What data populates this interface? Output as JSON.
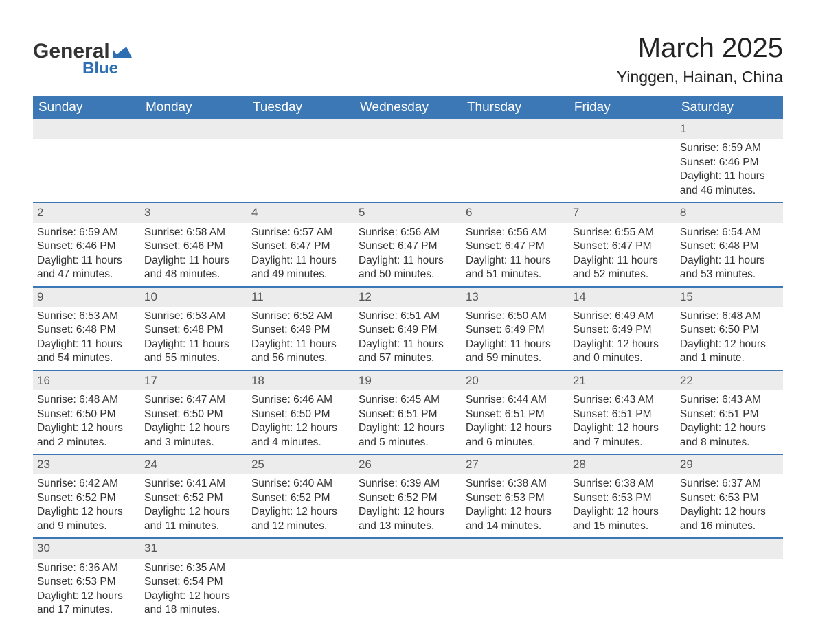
{
  "logo": {
    "text1": "General",
    "text2": "Blue",
    "icon_color": "#2e6fb3",
    "text1_color": "#333333",
    "text2_color": "#2e6fb3"
  },
  "title": {
    "month": "March 2025",
    "location": "Yinggen, Hainan, China"
  },
  "colors": {
    "header_bg": "#3b78b5",
    "header_text": "#ffffff",
    "daynum_bg": "#ececec",
    "row_border": "#3b78b5",
    "body_text": "#333333",
    "daynum_text": "#555555",
    "background": "#ffffff"
  },
  "typography": {
    "title_month_fontsize": 40,
    "title_location_fontsize": 23,
    "weekday_fontsize": 19,
    "daynum_fontsize": 17,
    "cell_fontsize": 15.5,
    "logo_general_fontsize": 30,
    "logo_blue_fontsize": 24
  },
  "weekdays": [
    "Sunday",
    "Monday",
    "Tuesday",
    "Wednesday",
    "Thursday",
    "Friday",
    "Saturday"
  ],
  "weeks": [
    [
      {
        "empty": true
      },
      {
        "empty": true
      },
      {
        "empty": true
      },
      {
        "empty": true
      },
      {
        "empty": true
      },
      {
        "empty": true
      },
      {
        "day": "1",
        "sunrise": "Sunrise: 6:59 AM",
        "sunset": "Sunset: 6:46 PM",
        "daylight1": "Daylight: 11 hours",
        "daylight2": "and 46 minutes."
      }
    ],
    [
      {
        "day": "2",
        "sunrise": "Sunrise: 6:59 AM",
        "sunset": "Sunset: 6:46 PM",
        "daylight1": "Daylight: 11 hours",
        "daylight2": "and 47 minutes."
      },
      {
        "day": "3",
        "sunrise": "Sunrise: 6:58 AM",
        "sunset": "Sunset: 6:46 PM",
        "daylight1": "Daylight: 11 hours",
        "daylight2": "and 48 minutes."
      },
      {
        "day": "4",
        "sunrise": "Sunrise: 6:57 AM",
        "sunset": "Sunset: 6:47 PM",
        "daylight1": "Daylight: 11 hours",
        "daylight2": "and 49 minutes."
      },
      {
        "day": "5",
        "sunrise": "Sunrise: 6:56 AM",
        "sunset": "Sunset: 6:47 PM",
        "daylight1": "Daylight: 11 hours",
        "daylight2": "and 50 minutes."
      },
      {
        "day": "6",
        "sunrise": "Sunrise: 6:56 AM",
        "sunset": "Sunset: 6:47 PM",
        "daylight1": "Daylight: 11 hours",
        "daylight2": "and 51 minutes."
      },
      {
        "day": "7",
        "sunrise": "Sunrise: 6:55 AM",
        "sunset": "Sunset: 6:47 PM",
        "daylight1": "Daylight: 11 hours",
        "daylight2": "and 52 minutes."
      },
      {
        "day": "8",
        "sunrise": "Sunrise: 6:54 AM",
        "sunset": "Sunset: 6:48 PM",
        "daylight1": "Daylight: 11 hours",
        "daylight2": "and 53 minutes."
      }
    ],
    [
      {
        "day": "9",
        "sunrise": "Sunrise: 6:53 AM",
        "sunset": "Sunset: 6:48 PM",
        "daylight1": "Daylight: 11 hours",
        "daylight2": "and 54 minutes."
      },
      {
        "day": "10",
        "sunrise": "Sunrise: 6:53 AM",
        "sunset": "Sunset: 6:48 PM",
        "daylight1": "Daylight: 11 hours",
        "daylight2": "and 55 minutes."
      },
      {
        "day": "11",
        "sunrise": "Sunrise: 6:52 AM",
        "sunset": "Sunset: 6:49 PM",
        "daylight1": "Daylight: 11 hours",
        "daylight2": "and 56 minutes."
      },
      {
        "day": "12",
        "sunrise": "Sunrise: 6:51 AM",
        "sunset": "Sunset: 6:49 PM",
        "daylight1": "Daylight: 11 hours",
        "daylight2": "and 57 minutes."
      },
      {
        "day": "13",
        "sunrise": "Sunrise: 6:50 AM",
        "sunset": "Sunset: 6:49 PM",
        "daylight1": "Daylight: 11 hours",
        "daylight2": "and 59 minutes."
      },
      {
        "day": "14",
        "sunrise": "Sunrise: 6:49 AM",
        "sunset": "Sunset: 6:49 PM",
        "daylight1": "Daylight: 12 hours",
        "daylight2": "and 0 minutes."
      },
      {
        "day": "15",
        "sunrise": "Sunrise: 6:48 AM",
        "sunset": "Sunset: 6:50 PM",
        "daylight1": "Daylight: 12 hours",
        "daylight2": "and 1 minute."
      }
    ],
    [
      {
        "day": "16",
        "sunrise": "Sunrise: 6:48 AM",
        "sunset": "Sunset: 6:50 PM",
        "daylight1": "Daylight: 12 hours",
        "daylight2": "and 2 minutes."
      },
      {
        "day": "17",
        "sunrise": "Sunrise: 6:47 AM",
        "sunset": "Sunset: 6:50 PM",
        "daylight1": "Daylight: 12 hours",
        "daylight2": "and 3 minutes."
      },
      {
        "day": "18",
        "sunrise": "Sunrise: 6:46 AM",
        "sunset": "Sunset: 6:50 PM",
        "daylight1": "Daylight: 12 hours",
        "daylight2": "and 4 minutes."
      },
      {
        "day": "19",
        "sunrise": "Sunrise: 6:45 AM",
        "sunset": "Sunset: 6:51 PM",
        "daylight1": "Daylight: 12 hours",
        "daylight2": "and 5 minutes."
      },
      {
        "day": "20",
        "sunrise": "Sunrise: 6:44 AM",
        "sunset": "Sunset: 6:51 PM",
        "daylight1": "Daylight: 12 hours",
        "daylight2": "and 6 minutes."
      },
      {
        "day": "21",
        "sunrise": "Sunrise: 6:43 AM",
        "sunset": "Sunset: 6:51 PM",
        "daylight1": "Daylight: 12 hours",
        "daylight2": "and 7 minutes."
      },
      {
        "day": "22",
        "sunrise": "Sunrise: 6:43 AM",
        "sunset": "Sunset: 6:51 PM",
        "daylight1": "Daylight: 12 hours",
        "daylight2": "and 8 minutes."
      }
    ],
    [
      {
        "day": "23",
        "sunrise": "Sunrise: 6:42 AM",
        "sunset": "Sunset: 6:52 PM",
        "daylight1": "Daylight: 12 hours",
        "daylight2": "and 9 minutes."
      },
      {
        "day": "24",
        "sunrise": "Sunrise: 6:41 AM",
        "sunset": "Sunset: 6:52 PM",
        "daylight1": "Daylight: 12 hours",
        "daylight2": "and 11 minutes."
      },
      {
        "day": "25",
        "sunrise": "Sunrise: 6:40 AM",
        "sunset": "Sunset: 6:52 PM",
        "daylight1": "Daylight: 12 hours",
        "daylight2": "and 12 minutes."
      },
      {
        "day": "26",
        "sunrise": "Sunrise: 6:39 AM",
        "sunset": "Sunset: 6:52 PM",
        "daylight1": "Daylight: 12 hours",
        "daylight2": "and 13 minutes."
      },
      {
        "day": "27",
        "sunrise": "Sunrise: 6:38 AM",
        "sunset": "Sunset: 6:53 PM",
        "daylight1": "Daylight: 12 hours",
        "daylight2": "and 14 minutes."
      },
      {
        "day": "28",
        "sunrise": "Sunrise: 6:38 AM",
        "sunset": "Sunset: 6:53 PM",
        "daylight1": "Daylight: 12 hours",
        "daylight2": "and 15 minutes."
      },
      {
        "day": "29",
        "sunrise": "Sunrise: 6:37 AM",
        "sunset": "Sunset: 6:53 PM",
        "daylight1": "Daylight: 12 hours",
        "daylight2": "and 16 minutes."
      }
    ],
    [
      {
        "day": "30",
        "sunrise": "Sunrise: 6:36 AM",
        "sunset": "Sunset: 6:53 PM",
        "daylight1": "Daylight: 12 hours",
        "daylight2": "and 17 minutes."
      },
      {
        "day": "31",
        "sunrise": "Sunrise: 6:35 AM",
        "sunset": "Sunset: 6:54 PM",
        "daylight1": "Daylight: 12 hours",
        "daylight2": "and 18 minutes."
      },
      {
        "empty": true
      },
      {
        "empty": true
      },
      {
        "empty": true
      },
      {
        "empty": true
      },
      {
        "empty": true
      }
    ]
  ]
}
